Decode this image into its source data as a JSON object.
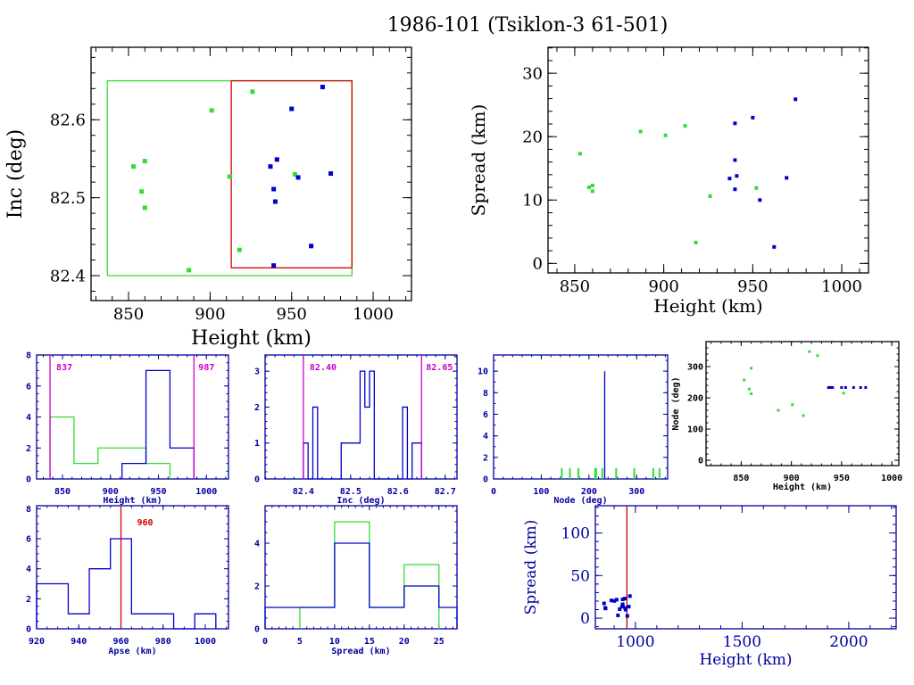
{
  "title": "1986-101 (Tsiklon-3 61-501)",
  "colors": {
    "green": "#33dd33",
    "blue": "#0000cc",
    "red": "#cc0000",
    "magenta": "#cc00cc",
    "navy": "#0000a0",
    "black": "#000000"
  },
  "chart_data": [
    {
      "id": "inc-vs-height",
      "type": "scatter",
      "xlabel": "Height (km)",
      "ylabel": "Inc (deg)",
      "xlim": [
        827,
        1023.5
      ],
      "ylim": [
        82.368,
        82.693
      ],
      "xticks": [
        850,
        900,
        950,
        1000
      ],
      "xtick_labels": [
        "850",
        "900",
        "950",
        "1000"
      ],
      "xminor": 10,
      "yticks": [
        82.4,
        82.5,
        82.6
      ],
      "ytick_labels": [
        "82.4",
        "82.5",
        "82.6"
      ],
      "yminor": 0.02,
      "rects": [
        {
          "name": "green-selection-box",
          "color": "green",
          "x": [
            837,
            987
          ],
          "y": [
            82.4,
            82.65
          ]
        },
        {
          "name": "red-selection-box",
          "color": "red",
          "x": [
            913,
            987
          ],
          "y": [
            82.41,
            82.65
          ]
        }
      ],
      "series": [
        {
          "name": "green",
          "color": "green",
          "x": [
            853,
            860,
            858,
            860,
            887,
            901,
            912,
            918,
            926,
            952
          ],
          "y": [
            82.54,
            82.547,
            82.508,
            82.487,
            82.407,
            82.612,
            82.527,
            82.433,
            82.636,
            82.53
          ]
        },
        {
          "name": "blue",
          "color": "blue",
          "x": [
            937,
            941,
            939,
            940,
            950,
            954,
            969,
            974,
            962,
            939
          ],
          "y": [
            82.54,
            82.549,
            82.511,
            82.495,
            82.614,
            82.526,
            82.642,
            82.531,
            82.438,
            82.413
          ]
        }
      ]
    },
    {
      "id": "spread-vs-height",
      "type": "scatter",
      "xlabel": "Height (km)",
      "ylabel": "Spread (km)",
      "xlim": [
        835,
        1015
      ],
      "ylim": [
        -1.5,
        34.1
      ],
      "xticks": [
        850,
        900,
        950,
        1000
      ],
      "xtick_labels": [
        "850",
        "900",
        "950",
        "1000"
      ],
      "xminor": 10,
      "yticks": [
        0,
        10,
        20,
        30
      ],
      "ytick_labels": [
        "0",
        "10",
        "20",
        "30"
      ],
      "yminor": 2,
      "series": [
        {
          "name": "green",
          "color": "green",
          "x": [
            853,
            858,
            860,
            860,
            887,
            901,
            912,
            918,
            926,
            952
          ],
          "y": [
            17.3,
            12,
            12.3,
            11.4,
            20.8,
            20.2,
            21.7,
            3.3,
            10.6,
            11.9
          ]
        },
        {
          "name": "blue",
          "color": "blue",
          "x": [
            937,
            940,
            940,
            941,
            940,
            950,
            954,
            962,
            969,
            974
          ],
          "y": [
            13.4,
            22.1,
            16.3,
            13.8,
            11.7,
            23,
            10,
            2.6,
            13.5,
            25.9
          ]
        }
      ]
    },
    {
      "id": "height-histogram",
      "type": "histogram",
      "xlabel": "Height (km)",
      "ylabel": "",
      "xlim": [
        823,
        1023
      ],
      "ylim": [
        0,
        8
      ],
      "xticks": [
        850,
        900,
        950,
        1000
      ],
      "xtick_labels": [
        "850",
        "900",
        "950",
        "1000"
      ],
      "xminor": 10,
      "yticks": [
        0,
        2,
        4,
        6,
        8
      ],
      "ytick_labels": [
        "0",
        "2",
        "4",
        "6",
        "8"
      ],
      "yminor": 0.5,
      "vlines": [
        {
          "x": 837,
          "color": "magenta",
          "label": "837"
        },
        {
          "x": 987,
          "color": "magenta",
          "label": "987"
        }
      ],
      "series": [
        {
          "name": "green",
          "color": "green",
          "edges": [
            837,
            862,
            887,
            912,
            937,
            962
          ],
          "counts": [
            4,
            1,
            2,
            2,
            1
          ]
        },
        {
          "name": "blue",
          "color": "blue",
          "edges": [
            912,
            937,
            962,
            987
          ],
          "counts": [
            1,
            7,
            2
          ]
        }
      ]
    },
    {
      "id": "inc-histogram",
      "type": "histogram",
      "xlabel": "Inc (deg)",
      "ylabel": "",
      "xlim": [
        82.319,
        82.725
      ],
      "ylim": [
        0,
        3.45
      ],
      "xticks": [
        82.4,
        82.5,
        82.6,
        82.7
      ],
      "xtick_labels": [
        "82.4",
        "82.5",
        "82.6",
        "82.7"
      ],
      "xminor": 0.02,
      "yticks": [
        0,
        1,
        2,
        3
      ],
      "ytick_labels": [
        "0",
        "1",
        "2",
        "3"
      ],
      "yminor": 0.2,
      "vlines": [
        {
          "x": 82.4,
          "color": "magenta",
          "label": "82.40"
        },
        {
          "x": 82.65,
          "color": "magenta",
          "label": "82.65"
        }
      ],
      "series": [
        {
          "name": "blue",
          "color": "blue",
          "edges": [
            82.4,
            82.41,
            82.42,
            82.43,
            82.44,
            82.48,
            82.52,
            82.53,
            82.54,
            82.55,
            82.61,
            82.62,
            82.63,
            82.65
          ],
          "counts": [
            1,
            0,
            2,
            0,
            0,
            1,
            3,
            2,
            3,
            0,
            2,
            0,
            1
          ]
        }
      ]
    },
    {
      "id": "node-histogram",
      "type": "histogram",
      "xlabel": "Node (deg)",
      "ylabel": "",
      "xlim": [
        0,
        365
      ],
      "ylim": [
        0,
        11.5
      ],
      "xticks": [
        0,
        100,
        200,
        300
      ],
      "xtick_labels": [
        "0",
        "100",
        "200",
        "300"
      ],
      "xminor": 20,
      "yticks": [
        0,
        2,
        4,
        6,
        8,
        10
      ],
      "ytick_labels": [
        "0",
        "2",
        "4",
        "6",
        "8",
        "10"
      ],
      "yminor": 1,
      "spikes": [
        {
          "name": "green",
          "color": "green",
          "x": [
            143,
            160,
            178,
            213,
            215,
            228,
            257,
            295,
            335,
            348
          ],
          "y": [
            1,
            1,
            1,
            1,
            1,
            1,
            1,
            1,
            1,
            1
          ]
        },
        {
          "name": "blue",
          "color": "blue",
          "x": [
            233
          ],
          "y": [
            10
          ]
        }
      ]
    },
    {
      "id": "node-vs-height",
      "type": "scatter",
      "xlabel": "Height (km)",
      "ylabel": "Node (deg)",
      "xlim": [
        815,
        1007
      ],
      "ylim": [
        -17,
        380
      ],
      "xticks": [
        850,
        900,
        950,
        1000
      ],
      "xtick_labels": [
        "850",
        "900",
        "950",
        "1000"
      ],
      "xminor": 10,
      "yticks": [
        0,
        100,
        200,
        300
      ],
      "ytick_labels": [
        "0",
        "100",
        "200",
        "300"
      ],
      "yminor": 20,
      "series": [
        {
          "name": "green",
          "color": "green",
          "x": [
            853,
            858,
            860,
            860,
            887,
            901,
            912,
            918,
            926,
            952
          ],
          "y": [
            257,
            228,
            213,
            295,
            160,
            178,
            143,
            348,
            335,
            215
          ]
        },
        {
          "name": "blue",
          "color": "blue",
          "x": [
            937,
            939,
            940,
            941,
            950,
            954,
            962,
            969,
            974
          ],
          "y": [
            233,
            233,
            233,
            233,
            233,
            233,
            233,
            233,
            233
          ]
        }
      ]
    },
    {
      "id": "apse-histogram",
      "type": "histogram",
      "xlabel": "Apse (km)",
      "ylabel": "",
      "xlim": [
        920,
        1011
      ],
      "ylim": [
        0,
        8.2
      ],
      "xticks": [
        920,
        940,
        960,
        980,
        1000
      ],
      "xtick_labels": [
        "920",
        "940",
        "960",
        "980",
        "1000"
      ],
      "xminor": 5,
      "yticks": [
        0,
        2,
        4,
        6,
        8
      ],
      "ytick_labels": [
        "0",
        "2",
        "4",
        "6",
        "8"
      ],
      "yminor": 0.5,
      "vlines": [
        {
          "x": 960,
          "color": "red",
          "label": "960"
        }
      ],
      "series": [
        {
          "name": "blue",
          "color": "blue",
          "edges": [
            920,
            935,
            945,
            955,
            965,
            985,
            995,
            1005
          ],
          "counts": [
            3,
            1,
            4,
            6,
            1,
            0,
            1
          ]
        }
      ]
    },
    {
      "id": "spread-histogram",
      "type": "histogram",
      "xlabel": "Spread (km)",
      "ylabel": "",
      "xlim": [
        0,
        27.6
      ],
      "ylim": [
        0,
        5.75
      ],
      "xticks": [
        0,
        5,
        10,
        15,
        20,
        25
      ],
      "xtick_labels": [
        "0",
        "5",
        "10",
        "15",
        "20",
        "25"
      ],
      "xminor": 1,
      "yticks": [
        0,
        2,
        4
      ],
      "ytick_labels": [
        "0",
        "2",
        "4"
      ],
      "yminor": 0.5,
      "series": [
        {
          "name": "green",
          "color": "green",
          "edges": [
            5,
            10,
            15,
            20,
            25
          ],
          "counts": [
            1,
            5,
            1,
            3
          ]
        },
        {
          "name": "blue",
          "color": "blue",
          "edges": [
            0,
            10,
            15,
            20,
            25,
            27.6
          ],
          "counts": [
            1,
            4,
            1,
            2,
            1
          ]
        }
      ]
    },
    {
      "id": "spread-vs-height-wide",
      "type": "scatter",
      "xlabel": "Height (km)",
      "ylabel": "Spread (km)",
      "xlim": [
        812,
        2222
      ],
      "ylim": [
        -12.5,
        132
      ],
      "xticks": [
        1000,
        1500,
        2000
      ],
      "xtick_labels": [
        "1000",
        "1500",
        "2000"
      ],
      "xminor": 100,
      "yticks": [
        0,
        50,
        100
      ],
      "ytick_labels": [
        "0",
        "50",
        "100"
      ],
      "yminor": 10,
      "vlines": [
        {
          "x": 960,
          "color": "red",
          "label": ""
        }
      ],
      "series": [
        {
          "name": "blue",
          "color": "blue",
          "x": [
            853,
            858,
            860,
            887,
            901,
            912,
            918,
            926,
            937,
            940,
            940,
            941,
            950,
            952,
            954,
            962,
            969,
            974
          ],
          "y": [
            17.3,
            12,
            11.4,
            20.8,
            20.2,
            21.7,
            3.3,
            10.6,
            13.4,
            22.1,
            16.3,
            13.8,
            23,
            11.9,
            10,
            2.6,
            13.5,
            25.9
          ]
        }
      ]
    }
  ]
}
